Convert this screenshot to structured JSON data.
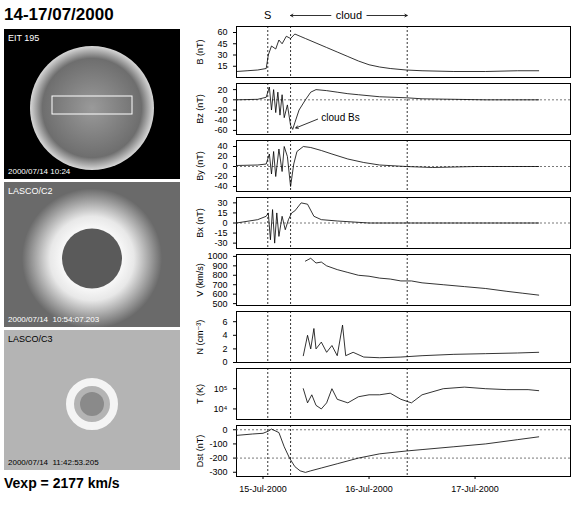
{
  "title": "14-17/07/2000",
  "caption": "Vexp = 2177 km/s",
  "images": [
    {
      "label": "EIT 195",
      "timestamp": "2000/07/14 10:24"
    },
    {
      "label": "LASCO/C2",
      "timestamp": "2000/07/14  10:54:07.203"
    },
    {
      "label": "LASCO/C3",
      "timestamp": "2000/07/14  11:42:53.205"
    }
  ],
  "markers": {
    "shock": {
      "label": "S",
      "x": 15.545
    },
    "cloud": {
      "label": "cloud",
      "start": 15.76,
      "end": 16.86
    }
  },
  "chart_data": [
    {
      "type": "line",
      "ylabel": "B (nT)",
      "color": "#000000",
      "tick_labels": "y",
      "x": [
        15.25,
        15.35,
        15.45,
        15.53,
        15.55,
        15.58,
        15.62,
        15.65,
        15.68,
        15.72,
        15.76,
        15.8,
        15.85,
        15.9,
        16.0,
        16.1,
        16.2,
        16.3,
        16.4,
        16.5,
        16.6,
        16.7,
        16.85,
        17.0,
        17.3,
        17.6,
        17.9,
        18.1
      ],
      "values": [
        8,
        9,
        10,
        12,
        30,
        42,
        38,
        50,
        45,
        55,
        52,
        58,
        55,
        52,
        46,
        40,
        34,
        28,
        22,
        17,
        14,
        12,
        10,
        9,
        8,
        8,
        9,
        9
      ],
      "xlim": [
        15.25,
        18.4
      ],
      "ylim": [
        0,
        68
      ],
      "yticks": [
        15,
        30,
        45,
        60
      ]
    },
    {
      "type": "line",
      "ylabel": "Bz (nT)",
      "color": "#000000",
      "tick_labels": "y",
      "x": [
        15.25,
        15.45,
        15.53,
        15.56,
        15.58,
        15.6,
        15.62,
        15.64,
        15.66,
        15.68,
        15.7,
        15.73,
        15.76,
        15.78,
        15.8,
        15.84,
        15.9,
        15.95,
        16.0,
        16.1,
        16.2,
        16.3,
        16.4,
        16.6,
        16.85,
        17.0,
        17.3,
        17.6,
        18.1
      ],
      "values": [
        0,
        1,
        5,
        25,
        -20,
        20,
        -25,
        15,
        -30,
        10,
        -35,
        -10,
        -50,
        -58,
        -45,
        -20,
        0,
        15,
        20,
        18,
        15,
        12,
        10,
        6,
        4,
        2,
        1,
        0,
        0
      ],
      "xlim": [
        15.25,
        18.4
      ],
      "ylim": [
        -68,
        32
      ],
      "yticks": [
        20,
        0,
        -20,
        -40,
        -60
      ],
      "hlines": [
        0
      ],
      "annotation": {
        "text": "cloud Bs",
        "x": 16.05,
        "y": -35,
        "target_x": 15.8,
        "target_y": -56
      }
    },
    {
      "type": "line",
      "ylabel": "By (nT)",
      "color": "#000000",
      "tick_labels": "y",
      "x": [
        15.25,
        15.45,
        15.53,
        15.56,
        15.58,
        15.6,
        15.62,
        15.65,
        15.68,
        15.7,
        15.73,
        15.76,
        15.79,
        15.82,
        15.88,
        15.95,
        16.05,
        16.15,
        16.3,
        16.45,
        16.6,
        16.85,
        17.1,
        17.5,
        18.1
      ],
      "values": [
        2,
        3,
        5,
        25,
        -15,
        30,
        -20,
        35,
        -10,
        40,
        20,
        -40,
        5,
        30,
        40,
        38,
        32,
        25,
        15,
        8,
        3,
        0,
        -2,
        0,
        0
      ],
      "xlim": [
        15.25,
        18.4
      ],
      "ylim": [
        -50,
        52
      ],
      "yticks": [
        40,
        20,
        0,
        -20,
        -40
      ],
      "hlines": [
        0
      ]
    },
    {
      "type": "line",
      "ylabel": "Bx (nT)",
      "color": "#000000",
      "tick_labels": "y",
      "x": [
        15.25,
        15.45,
        15.53,
        15.55,
        15.57,
        15.59,
        15.61,
        15.63,
        15.65,
        15.68,
        15.71,
        15.74,
        15.77,
        15.8,
        15.86,
        15.92,
        15.98,
        16.05,
        16.2,
        16.5,
        17.0,
        17.5,
        18.1
      ],
      "values": [
        0,
        5,
        10,
        15,
        -25,
        20,
        -30,
        15,
        -20,
        10,
        -10,
        5,
        15,
        18,
        30,
        28,
        10,
        5,
        3,
        0,
        0,
        0,
        0
      ],
      "xlim": [
        15.25,
        18.4
      ],
      "ylim": [
        -38,
        38
      ],
      "yticks": [
        30,
        15,
        0,
        -15,
        -30
      ],
      "hlines": [
        0
      ]
    },
    {
      "type": "line",
      "ylabel": "V (km/s)",
      "color": "#000000",
      "tick_labels": "y",
      "x": [
        15.9,
        15.95,
        16.0,
        16.05,
        16.1,
        16.2,
        16.3,
        16.4,
        16.5,
        16.6,
        16.7,
        16.8,
        16.9,
        17.0,
        17.2,
        17.4,
        17.6,
        17.8,
        17.95,
        18.1
      ],
      "values": [
        950,
        980,
        930,
        940,
        900,
        860,
        830,
        800,
        790,
        770,
        760,
        740,
        740,
        720,
        700,
        680,
        660,
        630,
        610,
        590
      ],
      "xlim": [
        15.25,
        18.4
      ],
      "ylim": [
        480,
        1020
      ],
      "yticks": [
        500,
        600,
        700,
        800,
        900,
        1000
      ]
    },
    {
      "type": "line",
      "ylabel": "N (cm⁻³)",
      "color": "#000000",
      "tick_labels": "y",
      "x": [
        15.88,
        15.92,
        15.95,
        15.98,
        16.0,
        16.05,
        16.1,
        16.15,
        16.2,
        16.25,
        16.28,
        16.35,
        16.45,
        16.6,
        16.8,
        17.0,
        17.3,
        17.6,
        17.9,
        18.1
      ],
      "values": [
        1,
        4,
        2,
        5,
        2,
        3,
        1.5,
        2.5,
        1,
        5.5,
        1,
        1.5,
        0.8,
        0.7,
        0.8,
        1,
        1.2,
        1.3,
        1.4,
        1.5
      ],
      "xlim": [
        15.25,
        18.4
      ],
      "ylim": [
        0,
        7.5
      ],
      "yticks": [
        0,
        2,
        4,
        6
      ]
    },
    {
      "type": "line",
      "ylabel": "T (K)",
      "color": "#000000",
      "tick_labels": "y",
      "log": "y",
      "x": [
        15.88,
        15.92,
        15.96,
        16.0,
        16.05,
        16.1,
        16.15,
        16.2,
        16.3,
        16.4,
        16.5,
        16.6,
        16.7,
        16.8,
        16.9,
        17.0,
        17.2,
        17.4,
        17.6,
        17.8,
        18.0,
        18.1
      ],
      "values": [
        100000,
        20000,
        50000,
        15000,
        10000,
        20000,
        100000,
        30000,
        20000,
        40000,
        50000,
        50000,
        60000,
        30000,
        20000,
        50000,
        100000,
        120000,
        100000,
        90000,
        90000,
        80000
      ],
      "xlim": [
        15.25,
        18.4
      ],
      "ylim": [
        3000,
        1000000
      ],
      "yticks": [
        {
          "value": 10000,
          "label": "10⁴"
        },
        {
          "value": 100000,
          "label": "10⁵"
        }
      ]
    },
    {
      "type": "line",
      "ylabel": "Dst (nT)",
      "color": "#000000",
      "x": [
        15.25,
        15.4,
        15.5,
        15.55,
        15.58,
        15.65,
        15.7,
        15.75,
        15.8,
        15.85,
        15.9,
        15.95,
        16.05,
        16.2,
        16.4,
        16.6,
        16.85,
        17.0,
        17.3,
        17.6,
        17.9,
        18.1
      ],
      "values": [
        -40,
        -30,
        -25,
        -10,
        5,
        -20,
        -120,
        -200,
        -260,
        -290,
        -301,
        -290,
        -270,
        -240,
        -200,
        -170,
        -150,
        -140,
        -120,
        -100,
        -70,
        -50
      ],
      "xlim": [
        15.25,
        18.4
      ],
      "ylim": [
        -330,
        30
      ],
      "yticks": [
        0,
        -100,
        -200,
        -300
      ],
      "hlines": [
        0,
        -200
      ],
      "xticks": [
        {
          "value": 15.5,
          "label": "15-Jul-2000"
        },
        {
          "value": 16.5,
          "label": "16-Jul-2000"
        },
        {
          "value": 17.5,
          "label": "17-Jul-2000"
        }
      ]
    }
  ]
}
